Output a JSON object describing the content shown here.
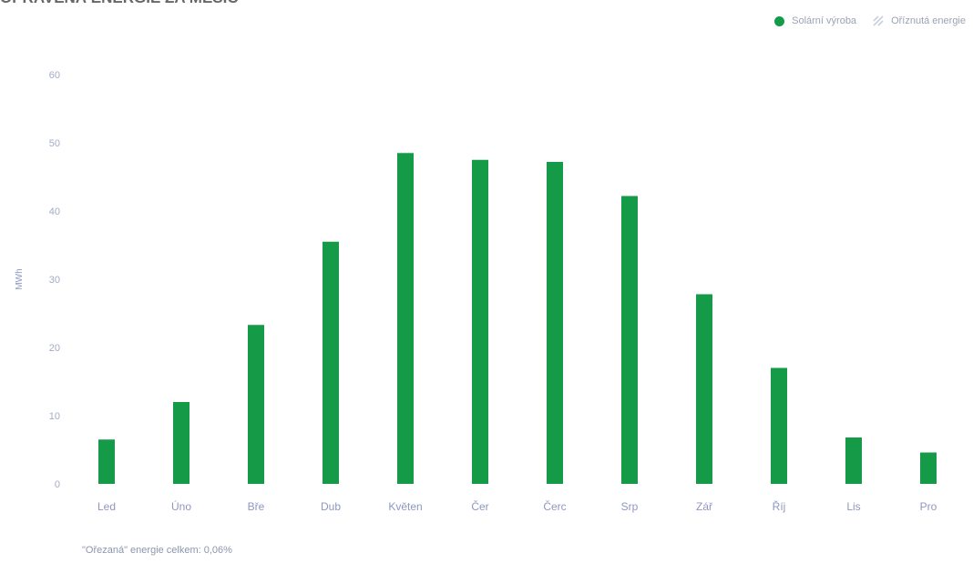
{
  "title": "OPRAVENÁ ENERGIE ZA MĚSÍC",
  "legend": {
    "items": [
      {
        "label": "Solární výroba",
        "color": "#159a48",
        "type": "dot"
      },
      {
        "label": "Oříznutá energie",
        "color": "#c9d0dd",
        "type": "hatch"
      }
    ]
  },
  "footnote": "\"Ořezaná\" energie celkem: 0,06%",
  "chart_data": {
    "type": "bar",
    "title": "OPRAVENÁ ENERGIE ZA MĚSÍC",
    "ylabel": "MWh",
    "xlabel": "",
    "categories": [
      "Led",
      "Úno",
      "Bře",
      "Dub",
      "Květen",
      "Čer",
      "Čerc",
      "Srp",
      "Zář",
      "Říj",
      "Lis",
      "Pro"
    ],
    "series": [
      {
        "name": "Solární výroba",
        "color": "#159a48",
        "values": [
          6.5,
          12,
          23.3,
          35.5,
          48.5,
          47.5,
          47.2,
          42.2,
          27.8,
          17,
          6.8,
          4.6
        ]
      },
      {
        "name": "Oříznutá energie",
        "color": "#c9d0dd",
        "values": [
          0,
          0,
          0,
          0,
          0.1,
          0.05,
          0,
          0,
          0,
          0,
          0,
          0
        ]
      }
    ],
    "ylim": [
      0,
      60
    ],
    "yticks": [
      0,
      10,
      20,
      30,
      40,
      50,
      60
    ],
    "grid": false,
    "legend_position": "top-right"
  }
}
